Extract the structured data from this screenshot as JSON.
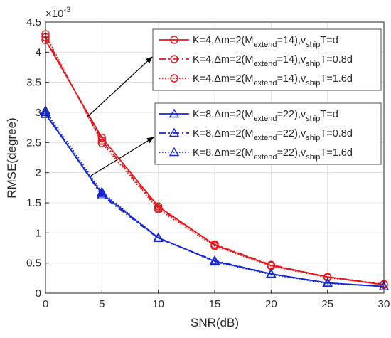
{
  "chart_data": {
    "type": "line",
    "xlabel": "SNR(dB)",
    "ylabel": "RMSE(degree)",
    "y_exponent_label": "×10",
    "y_exponent_power": "-3",
    "xlim": [
      0,
      30
    ],
    "ylim": [
      0,
      4.5
    ],
    "x_ticks": [
      "0",
      "5",
      "10",
      "15",
      "20",
      "25",
      "30"
    ],
    "y_ticks": [
      "0",
      "0.5",
      "1",
      "1.5",
      "2",
      "2.5",
      "3",
      "3.5",
      "4",
      "4.5"
    ],
    "grid": true,
    "x": [
      0,
      5,
      10,
      15,
      20,
      25,
      30
    ],
    "series": [
      {
        "color": "#e8151b",
        "dash": "solid",
        "marker": "circle",
        "values": [
          4.2,
          2.58,
          1.44,
          0.8,
          0.46,
          0.27,
          0.14
        ]
      },
      {
        "color": "#e8151b",
        "dash": "dashdot",
        "marker": "circle",
        "values": [
          4.25,
          2.53,
          1.41,
          0.81,
          0.47,
          0.27,
          0.15
        ]
      },
      {
        "color": "#e8151b",
        "dash": "dotted",
        "marker": "circle",
        "values": [
          4.3,
          2.49,
          1.39,
          0.78,
          0.45,
          0.26,
          0.14
        ]
      },
      {
        "color": "#1527d6",
        "dash": "solid",
        "marker": "triangle",
        "values": [
          2.97,
          1.65,
          0.92,
          0.53,
          0.32,
          0.17,
          0.11
        ]
      },
      {
        "color": "#1527d6",
        "dash": "dashdot",
        "marker": "triangle",
        "values": [
          3.0,
          1.62,
          0.91,
          0.54,
          0.32,
          0.17,
          0.11
        ]
      },
      {
        "color": "#1527d6",
        "dash": "dotted",
        "marker": "triangle",
        "values": [
          3.03,
          1.68,
          0.92,
          0.52,
          0.31,
          0.16,
          0.11
        ]
      }
    ],
    "legend_red": [
      "K=4,Δm=2(M",
      "extend",
      "=14),v",
      "ship",
      "T=d",
      "T=0.8d",
      "T=1.6d"
    ],
    "legend_blue": [
      "K=8,Δm=2(M",
      "extend",
      "=22),v",
      "ship",
      "T=d",
      "T=0.8d",
      "T=1.6d"
    ],
    "legend_placement": "top-right",
    "annotation": "arrows from the curve groups to their legend boxes"
  }
}
